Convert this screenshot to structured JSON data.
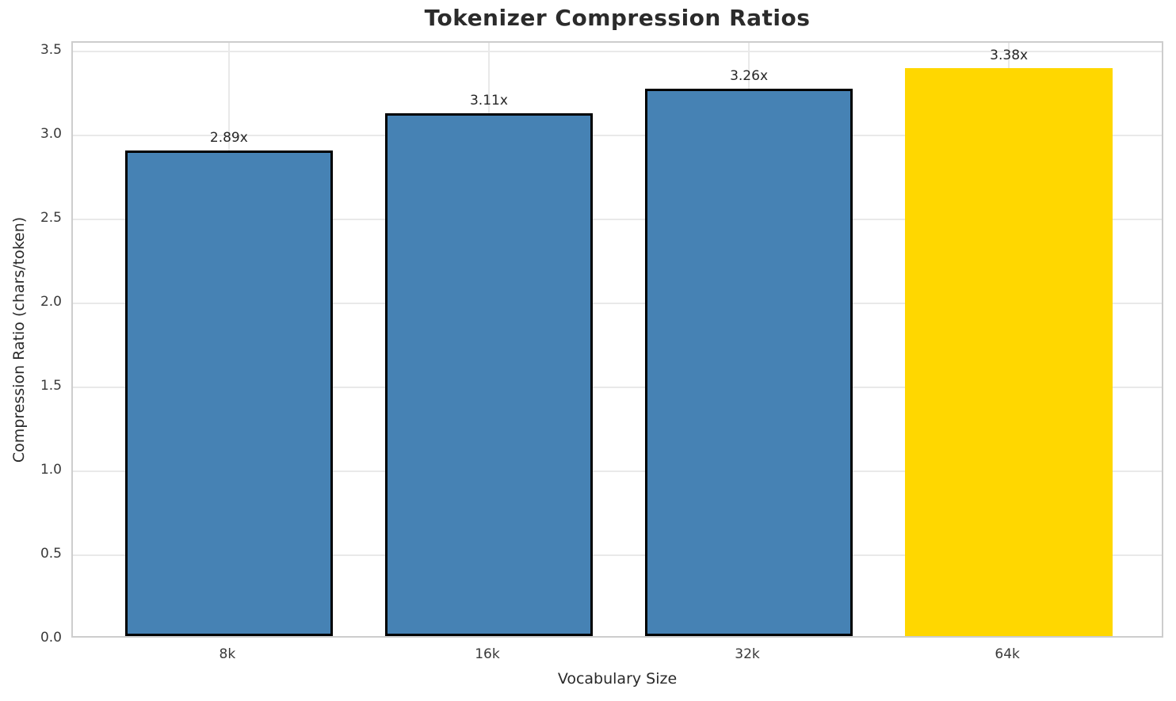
{
  "chart_data": {
    "type": "bar",
    "title": "Tokenizer Compression Ratios",
    "xlabel": "Vocabulary Size",
    "ylabel": "Compression Ratio (chars/token)",
    "categories": [
      "8k",
      "16k",
      "32k",
      "64k"
    ],
    "values": [
      2.89,
      3.11,
      3.26,
      3.38
    ],
    "bar_labels": [
      "2.89x",
      "3.11x",
      "3.26x",
      "3.38x"
    ],
    "bar_colors": [
      "#4682B4",
      "#4682B4",
      "#4682B4",
      "#FFD700"
    ],
    "bar_edge_colors": [
      "#000000",
      "#000000",
      "#000000",
      "none"
    ],
    "bar_edge_width": 3,
    "bar_width": 0.8,
    "yticks": [
      0.0,
      0.5,
      1.0,
      1.5,
      2.0,
      2.5,
      3.0,
      3.5
    ],
    "ytick_labels": [
      "0.0",
      "0.5",
      "1.0",
      "1.5",
      "2.0",
      "2.5",
      "3.0",
      "3.5"
    ],
    "ylim": [
      0,
      3.55
    ],
    "xlim": [
      -0.6,
      3.6
    ],
    "grid": true,
    "grid_color": "#e9e9e9",
    "spine_color": "#cdcdcd",
    "legend_position": "none",
    "highlight_category": "64k",
    "accent_color": "#FFD700",
    "series_color": "#4682B4"
  }
}
